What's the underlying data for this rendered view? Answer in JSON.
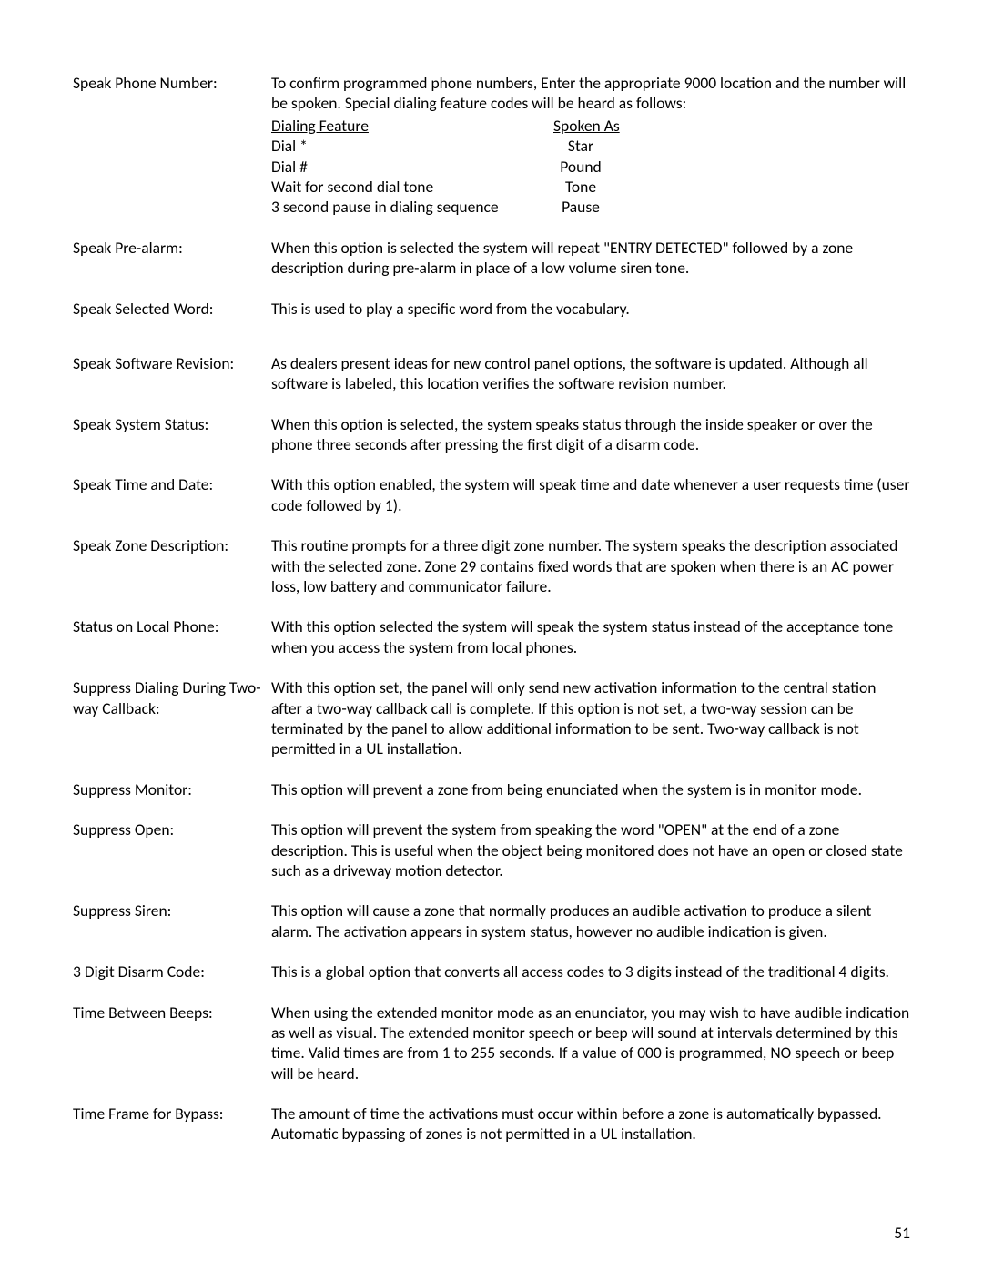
{
  "entries": [
    {
      "term": "Speak Phone Number:",
      "def_intro": "To confirm programmed phone numbers, Enter the appropriate 9000 location and the number will be spoken. Special dialing feature codes will be heard as follows:",
      "dial_table": {
        "h1": "Dialing Feature",
        "h2": "Spoken As",
        "rows": [
          {
            "c1": "Dial *",
            "c2": "Star"
          },
          {
            "c1": "Dial #",
            "c2": "Pound"
          },
          {
            "c1": "Wait for second dial tone",
            "c2": "Tone"
          },
          {
            "c1": "3 second pause in dialing sequence",
            "c2": "Pause"
          }
        ]
      }
    },
    {
      "term": "Speak Pre-alarm:",
      "def": "When this option is selected the system will repeat \"ENTRY DETECTED\" followed by a zone description during pre-alarm in place of a low volume siren tone."
    },
    {
      "term": "Speak Selected Word:",
      "def": "This is used to play a specific word from the vocabulary."
    },
    {
      "term": "Speak Software Revision:",
      "def": "As dealers present ideas for new control panel options, the software is updated.  Although all software is labeled, this location verifies the software revision number."
    },
    {
      "term": "Speak System Status:",
      "def": "When this option is selected, the system speaks status through the inside speaker or over the phone three seconds after pressing the first digit of a disarm code."
    },
    {
      "term": "Speak Time and Date:",
      "def": "With this option enabled, the system will speak time and date whenever a user requests time (user code followed by 1)."
    },
    {
      "term": "Speak Zone Description:",
      "def": "This routine prompts for a three digit zone number.  The system speaks the description associated with the selected zone.  Zone 29 contains fixed words that are spoken when there is an AC power loss, low battery and communicator failure."
    },
    {
      "term": "Status on Local Phone:",
      "def": "With this option selected the system will speak the system status instead of the acceptance tone when you access the system from local phones."
    },
    {
      "term": "Suppress Dialing During Two-way Callback:",
      "def": "With this option set, the panel will only send new activation information to the central station after a two-way callback call is complete.  If this option is not set, a two-way session can be terminated by the panel to allow additional information to be sent.   Two-way callback is not permitted in a UL installation."
    },
    {
      "term": "Suppress Monitor:",
      "def": "This option will prevent a zone from being enunciated when the system is in monitor mode."
    },
    {
      "term": "Suppress Open:",
      "def": "This option will prevent the system from speaking the word \"OPEN\" at the end of a zone description.  This is useful when the object being monitored does not have an open or closed state such as a driveway motion detector."
    },
    {
      "term": "Suppress Siren:",
      "def": "This option will cause a zone that normally produces an audible activation to produce a silent alarm.  The activation appears in system status, however no audible indication is given."
    },
    {
      "term": "3 Digit Disarm Code:",
      "def": "This is a global option that converts all access codes to 3 digits instead of the traditional 4 digits."
    },
    {
      "term": "Time Between Beeps:",
      "def": "When using the extended monitor mode as an enunciator, you may wish to have audible indication as well as visual. The extended monitor speech or beep will sound at intervals determined by this time. Valid times are from 1 to 255 seconds. If a value of 000 is programmed, NO speech or beep will be heard."
    },
    {
      "term": "Time Frame for Bypass:",
      "def": "The amount of time the activations must occur within before a zone is automatically bypassed.   Automatic bypassing of zones is not permitted in a UL installation."
    }
  ],
  "page_number": "51",
  "extra_spacing_after_index": 2
}
